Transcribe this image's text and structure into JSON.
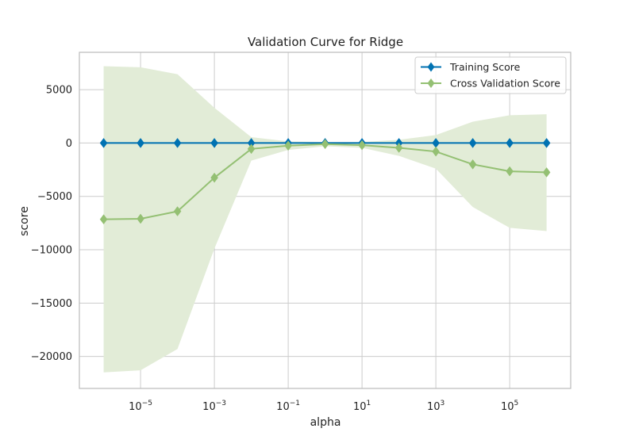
{
  "chart_data": {
    "type": "line",
    "title": "Validation Curve for Ridge",
    "xlabel": "alpha",
    "ylabel": "score",
    "x_scale": "log",
    "x": [
      1e-06,
      1e-05,
      0.0001,
      0.001,
      0.01,
      0.1,
      1,
      10,
      100,
      1000,
      10000,
      100000,
      1000000
    ],
    "xlim": [
      2.2e-07,
      4500000.0
    ],
    "ylim": [
      -23000,
      8500
    ],
    "x_ticks": [
      {
        "value": 1e-05,
        "base": "10",
        "exp": "−5"
      },
      {
        "value": 0.001,
        "base": "10",
        "exp": "−3"
      },
      {
        "value": 0.1,
        "base": "10",
        "exp": "−1"
      },
      {
        "value": 10,
        "base": "10",
        "exp": "1"
      },
      {
        "value": 1000,
        "base": "10",
        "exp": "3"
      },
      {
        "value": 100000,
        "base": "10",
        "exp": "5"
      }
    ],
    "y_ticks": [
      {
        "value": 5000,
        "label": "5000"
      },
      {
        "value": 0,
        "label": "0"
      },
      {
        "value": -5000,
        "label": "−5000"
      },
      {
        "value": -10000,
        "label": "−10000"
      },
      {
        "value": -15000,
        "label": "−15000"
      },
      {
        "value": -20000,
        "label": "−20000"
      }
    ],
    "grid": true,
    "legend_position": "top-right",
    "series": [
      {
        "name": "Training Score",
        "color": "#0072b2",
        "marker": "diamond",
        "values": [
          0,
          0,
          0,
          0,
          0,
          0,
          0,
          0,
          0,
          0,
          0,
          0,
          0
        ],
        "band_low": [
          0,
          0,
          0,
          0,
          0,
          0,
          0,
          0,
          0,
          0,
          0,
          0,
          0
        ],
        "band_high": [
          0,
          0,
          0,
          0,
          0,
          0,
          0,
          0,
          0,
          0,
          0,
          0,
          0
        ]
      },
      {
        "name": "Cross Validation Score",
        "color": "#94c073",
        "band_color": "#e2ecd7",
        "marker": "diamond",
        "values": [
          -7150,
          -7100,
          -6400,
          -3250,
          -550,
          -250,
          -100,
          -200,
          -450,
          -800,
          -2000,
          -2650,
          -2750
        ],
        "band_low": [
          -21500,
          -21300,
          -19300,
          -9900,
          -1650,
          -650,
          -300,
          -450,
          -1200,
          -2400,
          -6000,
          -7950,
          -8250
        ],
        "band_high": [
          7200,
          7100,
          6450,
          3300,
          550,
          150,
          100,
          100,
          300,
          750,
          2000,
          2600,
          2700
        ]
      }
    ]
  }
}
